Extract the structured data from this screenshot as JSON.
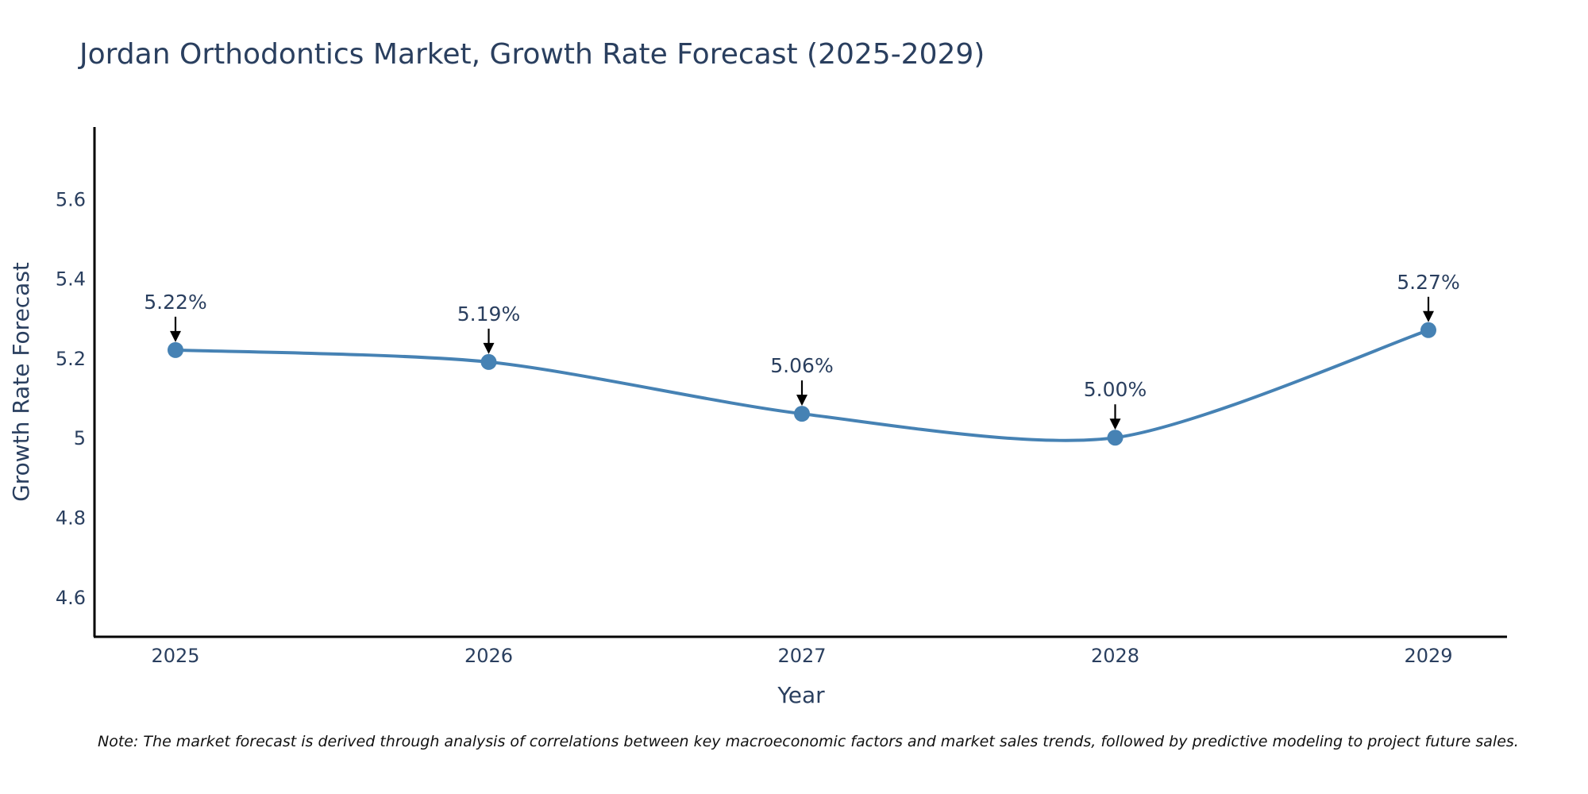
{
  "chart_data": {
    "type": "line",
    "title": "Jordan Orthodontics Market, Growth Rate Forecast (2025-2029)",
    "xlabel": "Year",
    "ylabel": "Growth Rate Forecast",
    "categories": [
      "2025",
      "2026",
      "2027",
      "2028",
      "2029"
    ],
    "values": [
      5.22,
      5.19,
      5.06,
      5.0,
      5.27
    ],
    "data_labels": [
      "5.22%",
      "5.19%",
      "5.06%",
      "5.00%",
      "5.27%"
    ],
    "ylim": [
      4.5,
      5.78
    ],
    "yticks": [
      4.6,
      4.8,
      5.0,
      5.2,
      5.4,
      5.6
    ],
    "ytick_labels": [
      "4.6",
      "4.8",
      "5",
      "5.2",
      "5.4",
      "5.6"
    ],
    "grid": false,
    "line_shape": "spline",
    "series_color": "#4682b4",
    "note": "Note: The market forecast is derived through analysis of correlations between key macroeconomic factors and market sales trends, followed by predictive modeling to project future sales."
  }
}
